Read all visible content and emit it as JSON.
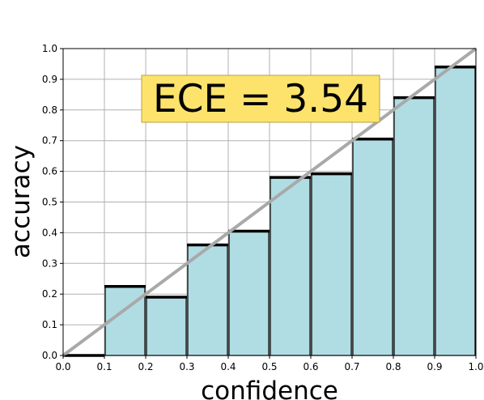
{
  "chart_data": {
    "type": "histogram",
    "x_label": "confidence",
    "y_label": "accuracy",
    "annotation": "ECE = 3.54",
    "bins": [
      0,
      0.1,
      0.2,
      0.3,
      0.4,
      0.5,
      0.6,
      0.7,
      0.8,
      0.9,
      1
    ],
    "values": [
      0,
      0.225,
      0.19,
      0.36,
      0.405,
      0.58,
      0.592,
      0.705,
      0.84,
      0.94
    ],
    "color": "#b0dde4",
    "xlim": [
      0,
      1
    ],
    "ylim": [
      0,
      1
    ],
    "xticks": [
      {
        "value": 0,
        "label": "0.0"
      },
      0.1,
      0.2,
      0.3,
      0.4,
      0.5,
      0.6,
      0.7,
      0.8,
      0.9,
      {
        "value": 1,
        "label": "1.0"
      }
    ],
    "yticks": [
      {
        "value": 0,
        "label": "0.0"
      },
      0.1,
      0.2,
      0.3,
      0.4,
      0.5,
      0.6,
      0.7,
      0.8,
      0.9,
      {
        "value": 1,
        "label": "1.0"
      }
    ],
    "grid": true
  }
}
